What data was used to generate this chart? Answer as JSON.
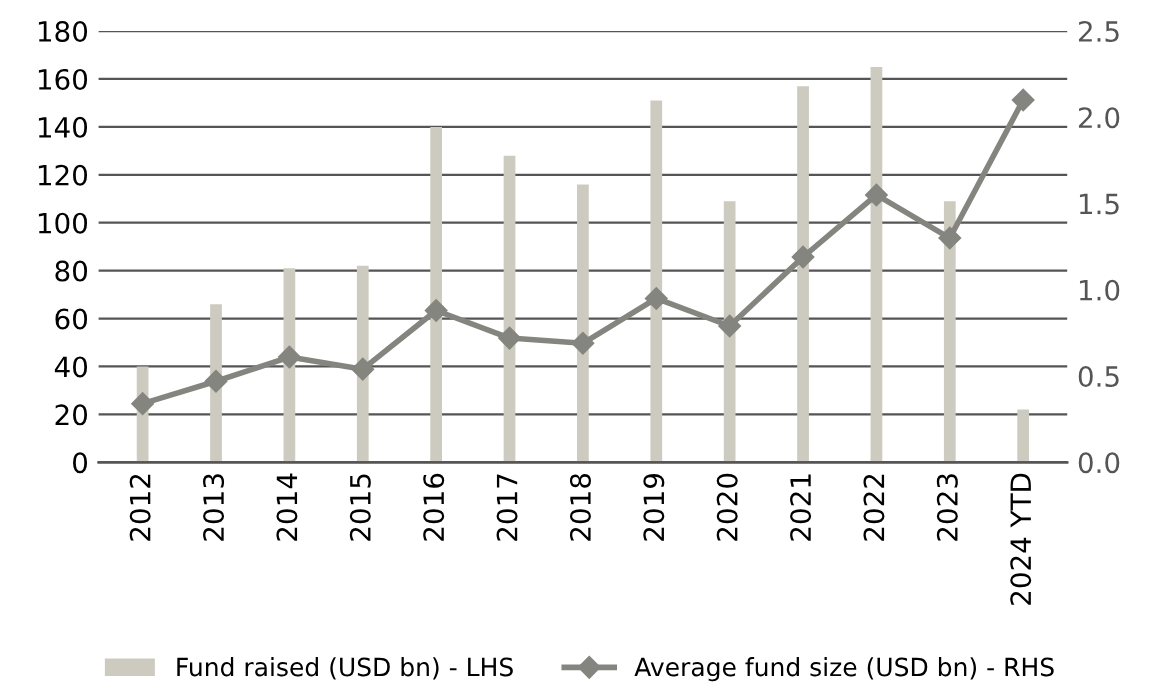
{
  "chart_data": {
    "type": "bar",
    "categories": [
      "2012",
      "2013",
      "2014",
      "2015",
      "2016",
      "2017",
      "2018",
      "2019",
      "2020",
      "2021",
      "2022",
      "2023",
      "2024 YTD"
    ],
    "series": [
      {
        "name": "Fund raised (USD bn) - LHS",
        "color": "#cdcbbf",
        "values": [
          40,
          66,
          81,
          82,
          140,
          128,
          116,
          151,
          109,
          157,
          165,
          109,
          22
        ]
      },
      {
        "name": "Average fund size (USD bn) - RHS",
        "type": "line",
        "axis": "y2",
        "color": "#858580",
        "marker": "diamond",
        "values": [
          0.34,
          0.47,
          0.61,
          0.54,
          0.88,
          0.72,
          0.69,
          0.95,
          0.79,
          1.19,
          1.55,
          1.3,
          2.1
        ]
      }
    ],
    "ylim": [
      0,
      180
    ],
    "yticks": [
      0,
      20,
      40,
      60,
      80,
      100,
      120,
      140,
      160,
      180
    ],
    "y2lim": [
      0,
      2.5
    ],
    "y2ticks": [
      {
        "value": 0,
        "label": "0.0"
      },
      {
        "value": 0.5,
        "label": "0.5"
      },
      {
        "value": 1,
        "label": "1.0"
      },
      {
        "value": 1.5,
        "label": "1.5"
      },
      {
        "value": 2,
        "label": "2.0"
      },
      {
        "value": 2.5,
        "label": "2.5"
      }
    ],
    "grid": "y",
    "legend": "bottom"
  }
}
